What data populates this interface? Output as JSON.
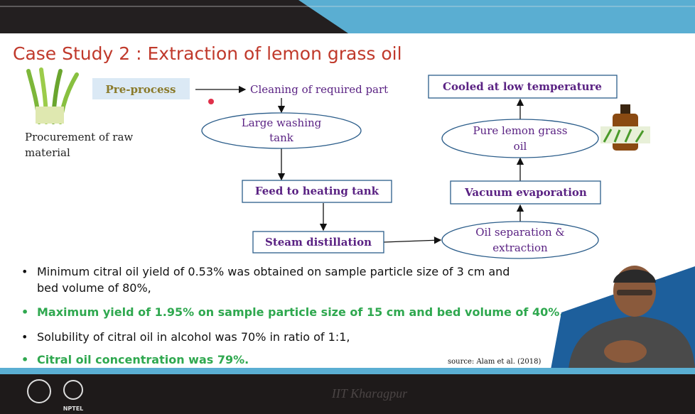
{
  "header": {
    "title": "Case Study 2 : Extraction of lemon grass oil"
  },
  "left": {
    "procurement": [
      "Procurement of raw",
      "material"
    ],
    "preprocess": "Pre-process"
  },
  "nodes": [
    {
      "label": [
        "Cleaning of required part"
      ]
    },
    {
      "label": [
        "Large washing",
        "tank"
      ]
    },
    {
      "label": [
        "Feed to heating tank"
      ]
    },
    {
      "label": [
        "Steam distillation"
      ]
    },
    {
      "label": [
        "Oil separation &",
        "extraction"
      ]
    },
    {
      "label": [
        "Vacuum evaporation"
      ]
    },
    {
      "label": [
        "Pure lemon grass",
        "oil"
      ]
    },
    {
      "label": [
        "Cooled at low temperature"
      ]
    }
  ],
  "bullets": [
    [
      "Minimum citral oil yield of 0.53% was obtained on sample particle size of 3 cm and",
      "bed volume of 80%,"
    ],
    [
      "Maximum yield of 1.95% on sample particle size of 15 cm and bed volume of 40%."
    ],
    [
      "Solubility of citral oil in alcohol was 70% in ratio of 1:1,"
    ],
    [
      "Citral oil concentration was 79%."
    ]
  ],
  "source": "source: Alam et al. (2018)",
  "footer": {
    "institute": "IIT Kharagpur",
    "logo": "NPTEL"
  }
}
